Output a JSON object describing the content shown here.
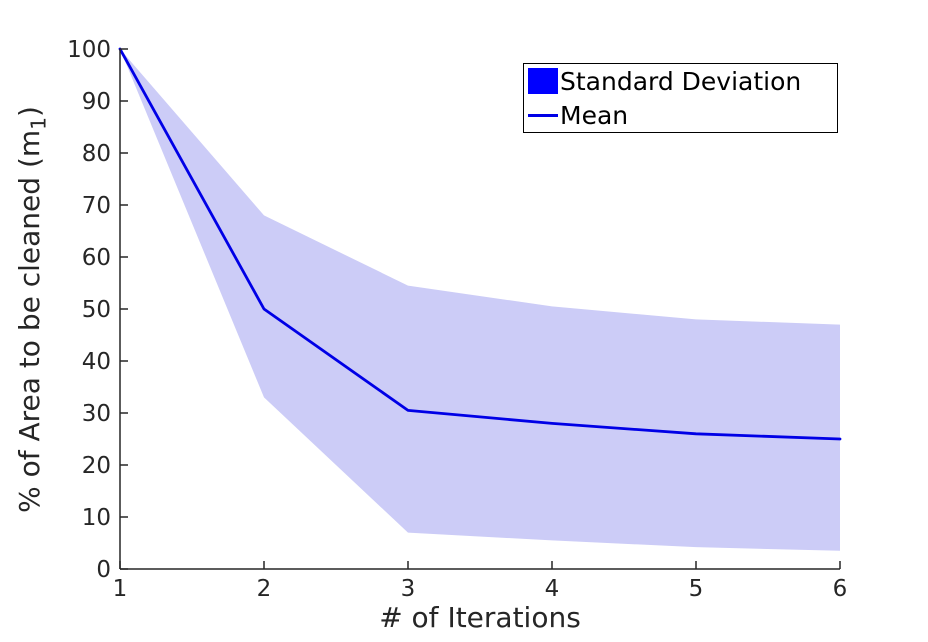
{
  "chart_data": {
    "type": "line",
    "title": "",
    "xlabel": "# of Iterations",
    "ylabel": "% of Area to be cleaned (m_1)",
    "ylabel_parts": {
      "main": "% of Area to be cleaned (m",
      "sub": "1",
      "close": ")"
    },
    "x": [
      1,
      2,
      3,
      4,
      5,
      6
    ],
    "series": [
      {
        "name": "Mean",
        "type": "line",
        "values": [
          100,
          50,
          30.5,
          28,
          26,
          25
        ]
      },
      {
        "name": "Standard Deviation",
        "type": "band",
        "upper": [
          100,
          68,
          54.5,
          50.5,
          48,
          47
        ],
        "lower": [
          100,
          33,
          7,
          5.5,
          4.2,
          3.5
        ]
      }
    ],
    "xlim": [
      1,
      6
    ],
    "ylim": [
      0,
      100
    ],
    "xticks": [
      1,
      2,
      3,
      4,
      5,
      6
    ],
    "yticks": [
      0,
      10,
      20,
      30,
      40,
      50,
      60,
      70,
      80,
      90,
      100
    ],
    "grid": false,
    "legend": {
      "position": "top-right",
      "entries": [
        {
          "label": "Standard Deviation",
          "marker": "patch"
        },
        {
          "label": "Mean",
          "marker": "line"
        }
      ]
    },
    "colors": {
      "mean_line": "#0000e6",
      "band_fill": "#ccccf7",
      "legend_patch": "#0000ff",
      "axis": "#262626",
      "text": "#262626",
      "legend_border": "#000000",
      "background": "#ffffff"
    }
  }
}
